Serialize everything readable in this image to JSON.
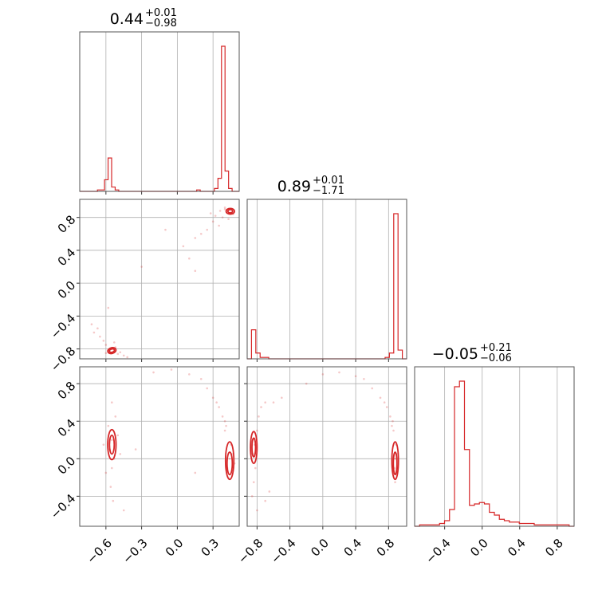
{
  "chart_data": {
    "type": "corner",
    "color": "#d62728",
    "grid": true,
    "parameters": [
      {
        "median": "0.44",
        "plus": "+0.01",
        "minus": "−0.98",
        "range": [
          -0.82,
          0.52
        ],
        "ticks": [
          -0.6,
          -0.3,
          0.0,
          0.3
        ],
        "tick_labels": [
          "−0.6",
          "−0.3",
          "0.0",
          "0.3"
        ],
        "hist_edges": [
          -0.82,
          0.52
        ],
        "hist_values": [
          0,
          0,
          0,
          0,
          0,
          1,
          1,
          8,
          23,
          3,
          1,
          0,
          0,
          0,
          0,
          0,
          0,
          0,
          0,
          0,
          0,
          0,
          0,
          0,
          0,
          0,
          0,
          0,
          0,
          0,
          0,
          0,
          0,
          1,
          0,
          0,
          0,
          0,
          2,
          9,
          100,
          14,
          2,
          0,
          0
        ]
      },
      {
        "median": "0.89",
        "plus": "+0.01",
        "minus": "−1.71",
        "range": [
          -0.92,
          1.02
        ],
        "ticks": [
          -0.8,
          -0.4,
          0.0,
          0.4,
          0.8
        ],
        "tick_labels": [
          "−0.8",
          "−0.4",
          "0.0",
          "0.4",
          "0.8"
        ],
        "hist_values": [
          0,
          20,
          4,
          1,
          1,
          0,
          0,
          0,
          0,
          0,
          0,
          0,
          0,
          0,
          0,
          0,
          0,
          0,
          0,
          0,
          0,
          0,
          0,
          0,
          0,
          0,
          0,
          0,
          0,
          0,
          0,
          0,
          1,
          4,
          100,
          6,
          0
        ]
      },
      {
        "median": "−0.05",
        "plus": "+0.21",
        "minus": "−0.06",
        "range": [
          -0.72,
          0.98
        ],
        "ticks": [
          -0.4,
          0.0,
          0.4,
          0.8
        ],
        "tick_labels": [
          "−0.4",
          "0.0",
          "0.4",
          "0.8"
        ],
        "ytick_labels_rows": [
          "0.8",
          "0.4",
          "0.0",
          "−0.4"
        ],
        "hist_values": [
          0,
          1,
          1,
          1,
          1,
          2,
          4,
          12,
          100,
          104,
          55,
          15,
          16,
          17,
          16,
          10,
          8,
          5,
          4,
          3,
          3,
          2,
          2,
          2,
          1,
          1,
          1,
          1,
          1,
          1,
          1,
          0
        ]
      }
    ],
    "pairs": [
      {
        "x": 0,
        "y": 1,
        "points": [
          [
            -0.55,
            -0.8
          ],
          [
            -0.57,
            -0.82
          ],
          [
            -0.52,
            -0.78
          ],
          [
            -0.6,
            -0.75
          ],
          [
            -0.5,
            -0.86
          ],
          [
            -0.48,
            -0.84
          ],
          [
            -0.62,
            -0.7
          ],
          [
            -0.65,
            -0.65
          ],
          [
            -0.7,
            -0.6
          ],
          [
            -0.67,
            -0.55
          ],
          [
            -0.72,
            -0.5
          ],
          [
            -0.58,
            -0.3
          ],
          [
            -0.45,
            -0.88
          ],
          [
            -0.42,
            -0.9
          ],
          [
            -0.53,
            -0.72
          ],
          [
            -0.6,
            -0.85
          ],
          [
            0.42,
            0.88
          ],
          [
            0.45,
            0.86
          ],
          [
            0.4,
            0.9
          ],
          [
            0.47,
            0.84
          ],
          [
            0.38,
            0.8
          ],
          [
            0.35,
            0.7
          ],
          [
            0.3,
            0.75
          ],
          [
            0.25,
            0.65
          ],
          [
            0.2,
            0.6
          ],
          [
            0.15,
            0.55
          ],
          [
            0.32,
            0.82
          ],
          [
            0.43,
            0.78
          ],
          [
            -0.1,
            0.65
          ],
          [
            0.05,
            0.45
          ],
          [
            0.1,
            0.3
          ],
          [
            -0.3,
            0.2
          ],
          [
            0.15,
            0.15
          ],
          [
            0.4,
            0.92
          ],
          [
            0.36,
            0.88
          ],
          [
            0.28,
            0.85
          ]
        ],
        "contours": [
          {
            "cx": -0.55,
            "cy": -0.82,
            "rx": 0.035,
            "ry": 0.035,
            "rot": -15
          },
          {
            "cx": -0.55,
            "cy": -0.82,
            "rx": 0.022,
            "ry": 0.02,
            "rot": -15
          },
          {
            "cx": 0.445,
            "cy": 0.875,
            "rx": 0.035,
            "ry": 0.035,
            "rot": 0
          },
          {
            "cx": 0.445,
            "cy": 0.875,
            "rx": 0.02,
            "ry": 0.02,
            "rot": 0
          }
        ]
      },
      {
        "x": 0,
        "y": 2,
        "points": [
          [
            -0.55,
            0.2
          ],
          [
            -0.57,
            0.1
          ],
          [
            -0.53,
            0.0
          ],
          [
            -0.55,
            -0.1
          ],
          [
            -0.58,
            0.35
          ],
          [
            -0.52,
            0.45
          ],
          [
            -0.56,
            -0.3
          ],
          [
            -0.54,
            -0.45
          ],
          [
            -0.6,
            -0.15
          ],
          [
            -0.5,
            0.25
          ],
          [
            -0.48,
            0.05
          ],
          [
            -0.62,
            0.15
          ],
          [
            -0.45,
            -0.55
          ],
          [
            -0.35,
            0.1
          ],
          [
            -0.55,
            0.6
          ],
          [
            0.44,
            0.0
          ],
          [
            0.42,
            -0.1
          ],
          [
            0.45,
            0.15
          ],
          [
            0.4,
            0.3
          ],
          [
            0.38,
            0.45
          ],
          [
            0.35,
            0.55
          ],
          [
            0.3,
            0.65
          ],
          [
            0.25,
            0.75
          ],
          [
            0.2,
            0.85
          ],
          [
            0.1,
            0.9
          ],
          [
            -0.05,
            0.95
          ],
          [
            -0.2,
            0.92
          ],
          [
            0.43,
            -0.2
          ],
          [
            0.46,
            0.05
          ],
          [
            0.41,
            0.35
          ],
          [
            0.33,
            0.6
          ],
          [
            0.48,
            -0.05
          ],
          [
            0.15,
            -0.15
          ],
          [
            0.4,
            0.4
          ]
        ],
        "contours": [
          {
            "cx": -0.55,
            "cy": 0.15,
            "rx": 0.035,
            "ry": 0.16,
            "rot": 0
          },
          {
            "cx": -0.55,
            "cy": 0.15,
            "rx": 0.02,
            "ry": 0.1,
            "rot": 0
          },
          {
            "cx": 0.44,
            "cy": -0.02,
            "rx": 0.035,
            "ry": 0.2,
            "rot": 0
          },
          {
            "cx": 0.44,
            "cy": -0.05,
            "rx": 0.022,
            "ry": 0.12,
            "rot": 0
          }
        ]
      },
      {
        "x": 1,
        "y": 2,
        "points": [
          [
            -0.83,
            0.15
          ],
          [
            -0.85,
            0.05
          ],
          [
            -0.82,
            -0.1
          ],
          [
            -0.8,
            0.3
          ],
          [
            -0.78,
            0.45
          ],
          [
            -0.84,
            -0.25
          ],
          [
            -0.86,
            -0.4
          ],
          [
            -0.75,
            0.55
          ],
          [
            -0.7,
            0.6
          ],
          [
            -0.6,
            0.6
          ],
          [
            -0.5,
            0.65
          ],
          [
            -0.8,
            -0.55
          ],
          [
            -0.7,
            -0.45
          ],
          [
            -0.65,
            -0.35
          ],
          [
            0.88,
            0.0
          ],
          [
            0.87,
            -0.1
          ],
          [
            0.89,
            0.15
          ],
          [
            0.86,
            0.3
          ],
          [
            0.85,
            0.4
          ],
          [
            0.82,
            0.45
          ],
          [
            0.78,
            0.55
          ],
          [
            0.7,
            0.65
          ],
          [
            0.6,
            0.75
          ],
          [
            0.5,
            0.85
          ],
          [
            0.4,
            0.88
          ],
          [
            0.2,
            0.92
          ],
          [
            0.0,
            0.9
          ],
          [
            -0.2,
            0.8
          ],
          [
            0.88,
            -0.25
          ],
          [
            0.9,
            0.05
          ],
          [
            0.84,
            0.35
          ],
          [
            0.75,
            0.6
          ]
        ],
        "contours": [
          {
            "cx": -0.84,
            "cy": 0.12,
            "rx": 0.04,
            "ry": 0.17,
            "rot": 0
          },
          {
            "cx": -0.84,
            "cy": 0.12,
            "rx": 0.022,
            "ry": 0.1,
            "rot": 0
          },
          {
            "cx": 0.88,
            "cy": -0.02,
            "rx": 0.04,
            "ry": 0.2,
            "rot": 0
          },
          {
            "cx": 0.88,
            "cy": -0.05,
            "rx": 0.022,
            "ry": 0.12,
            "rot": 0
          }
        ]
      }
    ]
  }
}
